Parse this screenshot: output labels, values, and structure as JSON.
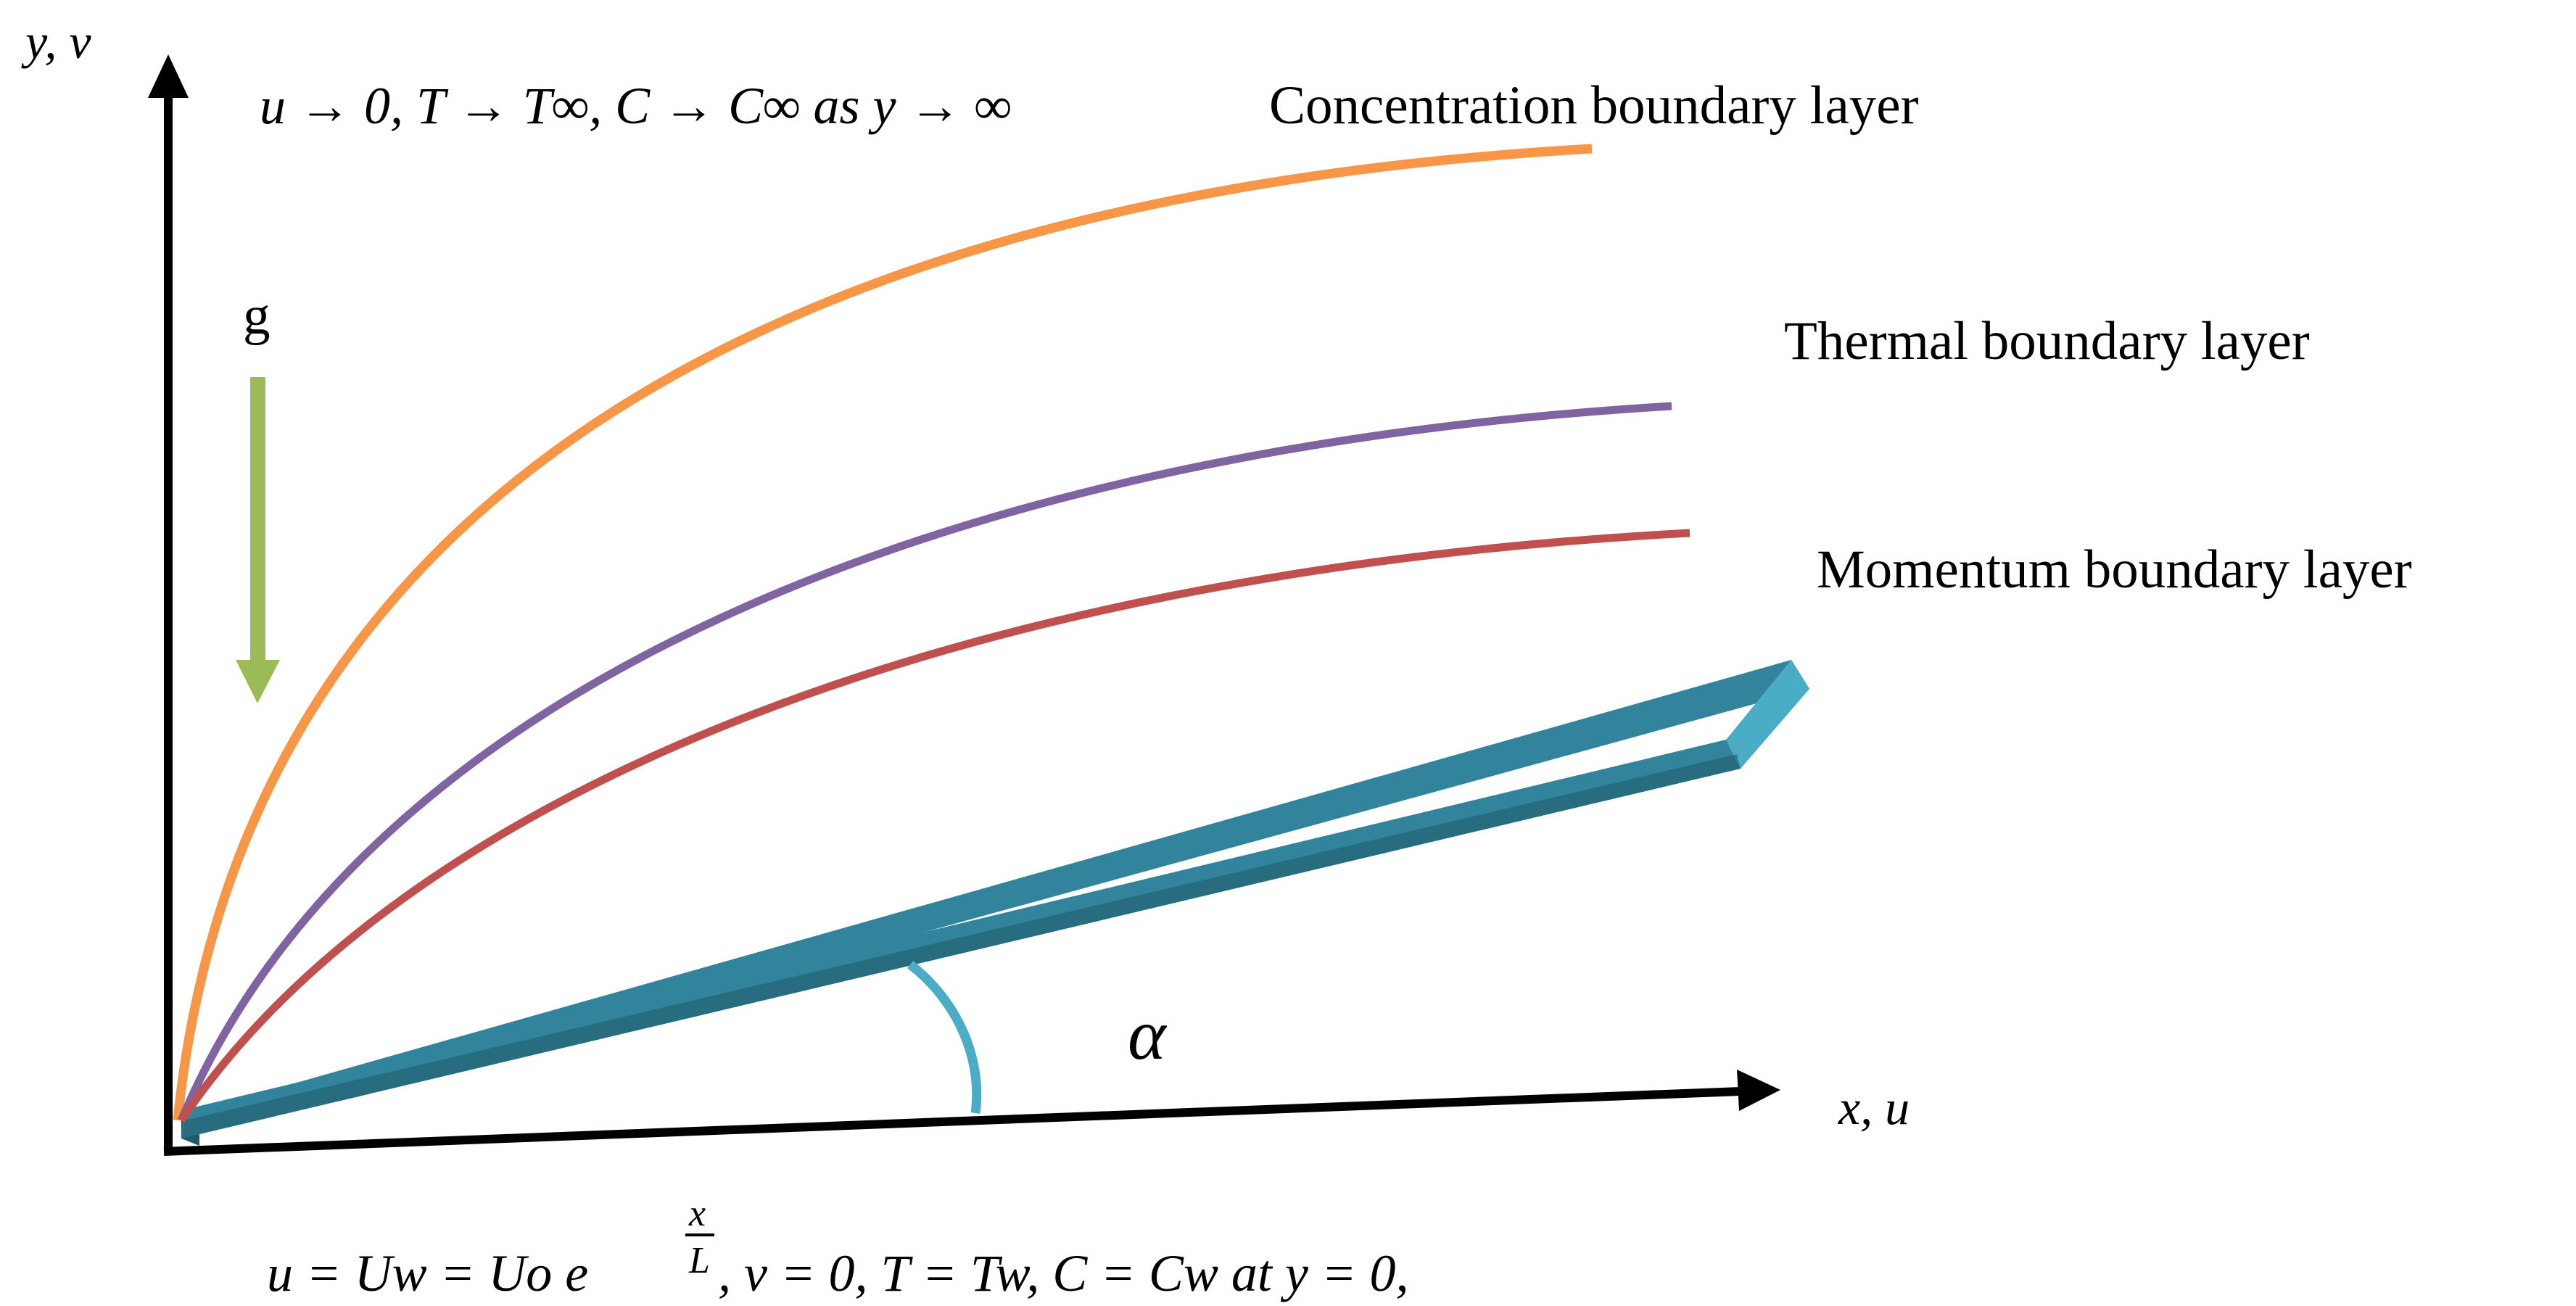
{
  "axes": {
    "y_label": "y, v",
    "x_label": "x, u"
  },
  "annotations": {
    "far_field_condition": "u → 0, T → T∞, C → C∞ as y → ∞",
    "wall_condition_part1": "u = Uw = Uo e",
    "wall_exponent_numerator": "x",
    "wall_exponent_denominator": "L",
    "wall_condition_part2": ", v = 0, T = Tw, C = Cw at y = 0,",
    "gravity_label": "g",
    "angle_label": "α"
  },
  "layers": {
    "concentration": {
      "label": "Concentration boundary layer",
      "color": "#f79646"
    },
    "thermal": {
      "label": "Thermal boundary layer",
      "color": "#8064a2"
    },
    "momentum": {
      "label": "Momentum boundary layer",
      "color": "#c0504d"
    }
  },
  "colors": {
    "axis": "#000000",
    "gravity_arrow": "#9bbb59",
    "plate_top": "#31849b",
    "plate_side": "#215968",
    "angle_arc": "#4bacc6"
  }
}
